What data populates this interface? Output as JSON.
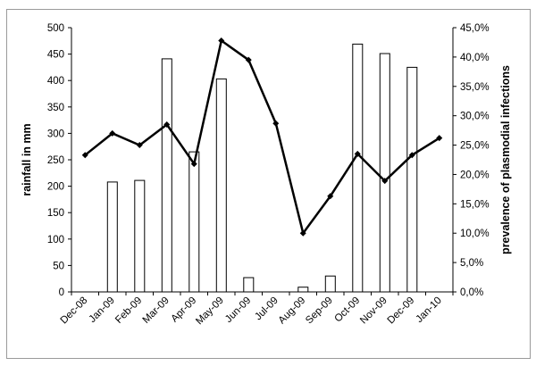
{
  "chart_data": {
    "type": "bar+line",
    "categories": [
      "Dec-08",
      "Jan-09",
      "Feb-09",
      "Mar-09",
      "Apr-09",
      "May-09",
      "Jun-09",
      "Jul-09",
      "Aug-09",
      "Sep-09",
      "Oct-09",
      "Nov-09",
      "Dec-09",
      "Jan-10"
    ],
    "series": [
      {
        "axis": "left",
        "type": "bar",
        "values": [
          null,
          208,
          211,
          441,
          265,
          403,
          27,
          null,
          9,
          30,
          469,
          451,
          425,
          null
        ],
        "color": "#ffffff",
        "stroke": "#000000"
      },
      {
        "axis": "right",
        "type": "line",
        "values": [
          23.3,
          27.0,
          25.0,
          28.5,
          21.8,
          42.8,
          39.5,
          28.7,
          10.0,
          16.3,
          23.5,
          18.9,
          23.3,
          26.2
        ],
        "color": "#000000"
      }
    ],
    "ylabel_left": "rainfall in mm",
    "ylabel_right": "prevalence of plasmodial infections",
    "ylim_left": [
      0,
      500
    ],
    "ylim_right": [
      0,
      45
    ],
    "yticks_left": [
      "0",
      "50",
      "100",
      "150",
      "200",
      "250",
      "300",
      "350",
      "400",
      "450",
      "500"
    ],
    "yticks_right": [
      "0,0%",
      "5,0%",
      "10,0%",
      "15,0%",
      "20,0%",
      "25,0%",
      "30,0%",
      "35,0%",
      "40,0%",
      "45,0%"
    ],
    "grid": false,
    "legend": "none"
  }
}
